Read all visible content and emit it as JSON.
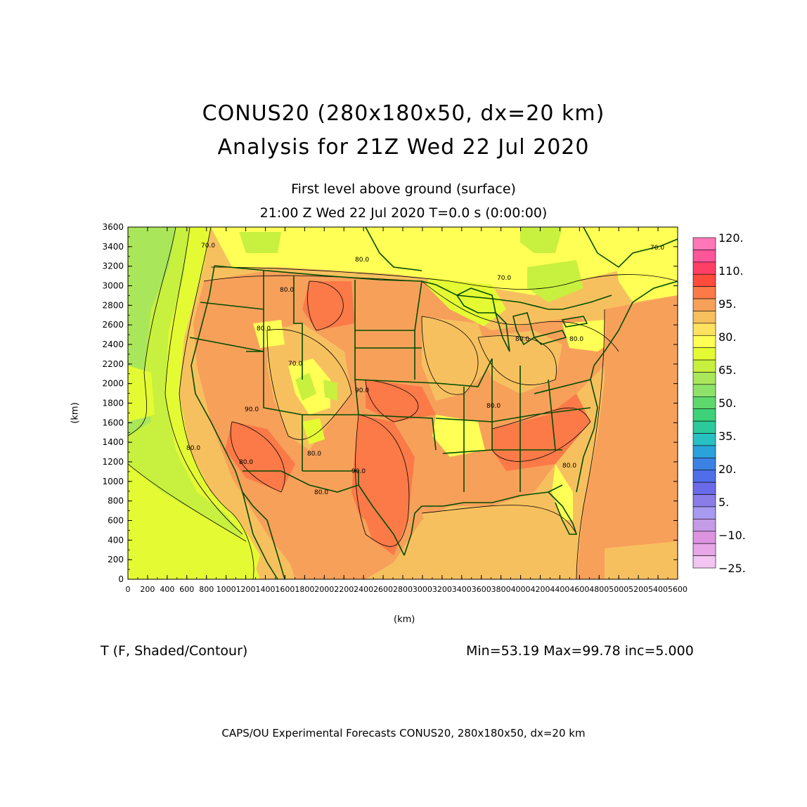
{
  "title": "CONUS20 (280x180x50, dx=20 km)",
  "subtitle": "Analysis for 21Z Wed 22 Jul 2020",
  "level": "First level above ground (surface)",
  "valid_time": "21:00 Z Wed 22 Jul 2020    T=0.0 s (0:00:00)",
  "variable": "T (F, Shaded/Contour)",
  "stats": "Min=53.19 Max=99.78 inc=5.000",
  "footer": "CAPS/OU Experimental Forecasts  CONUS20, 280x180x50, dx=20 km",
  "axes": {
    "xlabel": "(km)",
    "ylabel": "(km)",
    "x_ticks": [
      "0",
      "200",
      "400",
      "600",
      "800",
      "1000",
      "1200",
      "1400",
      "1600",
      "1800",
      "2000",
      "2200",
      "2400",
      "2600",
      "2800",
      "3000",
      "3200",
      "3400",
      "3600",
      "3800",
      "4000",
      "4200",
      "4400",
      "4600",
      "4800",
      "5000",
      "5200",
      "5400",
      "5600"
    ],
    "y_ticks": [
      "0",
      "200",
      "400",
      "600",
      "800",
      "1000",
      "1200",
      "1400",
      "1600",
      "1800",
      "2000",
      "2200",
      "2400",
      "2600",
      "2800",
      "3000",
      "3200",
      "3400",
      "3600"
    ],
    "xlim": [
      0,
      5600
    ],
    "ylim": [
      0,
      3600
    ]
  },
  "colorbar": {
    "labels": [
      "120.",
      "110.",
      "95.",
      "80.",
      "65.",
      "50.",
      "35.",
      "20.",
      "5.",
      "−10.",
      "−25."
    ],
    "colors": [
      "#ff77b8",
      "#ff5599",
      "#ff3f66",
      "#ff4b3c",
      "#fb7a48",
      "#f7a05a",
      "#f7c05f",
      "#ffe25f",
      "#ffff55",
      "#e4fb33",
      "#c8f03e",
      "#aae65a",
      "#8ee26a",
      "#5fd86e",
      "#3dd27a",
      "#2cc99b",
      "#28c0c2",
      "#2aa2db",
      "#3b82e4",
      "#4f6ee8",
      "#6b6ae8",
      "#8a7de8",
      "#a79af0",
      "#c59ae6",
      "#dc94e0",
      "#e7a7e8",
      "#f2c5f2"
    ]
  },
  "contour_labels": [
    "70.0",
    "80.0",
    "80.0",
    "70.0",
    "90.0",
    "80.0",
    "80.0",
    "80.0",
    "80.0",
    "80.0",
    "80.0",
    "90.0",
    "90.0",
    "80.0",
    "80.0",
    "70.0",
    "80.0",
    "70.0"
  ],
  "colors": {
    "coast": "#004c00",
    "contour": "#000000"
  }
}
